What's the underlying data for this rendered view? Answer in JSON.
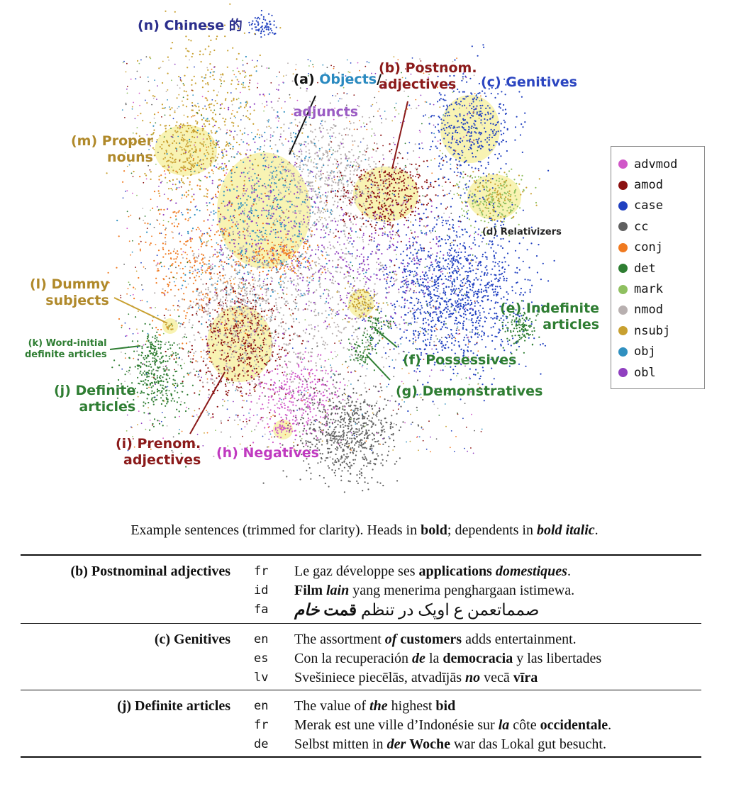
{
  "figure": {
    "cluster_labels": [
      {
        "id": "n",
        "text": "(n) Chinese 的",
        "color": "#2b2e8c"
      },
      {
        "id": "a1",
        "text": "(a) ",
        "color": "#111111"
      },
      {
        "id": "a2",
        "text": "Objects",
        "color": "#2a8ac0"
      },
      {
        "id": "a3",
        "text": "/",
        "color": "#111111"
      },
      {
        "id": "a4",
        "text": "adjuncts",
        "color": "#9b5cc4"
      },
      {
        "id": "b",
        "text": "(b) Postnom.\nadjectives",
        "color": "#8b1a1a"
      },
      {
        "id": "c",
        "text": "(c) Genitives",
        "color": "#2b45c0"
      },
      {
        "id": "m",
        "text": "(m) Proper\nnouns",
        "color": "#b0892a"
      },
      {
        "id": "d",
        "text": "(d) Relativizers",
        "color": "#222222"
      },
      {
        "id": "l",
        "text": "(l) Dummy\nsubjects",
        "color": "#b0892a"
      },
      {
        "id": "e",
        "text": "(e) Indefinite\narticles",
        "color": "#2e7d32"
      },
      {
        "id": "k",
        "text": "(k) Word-initial\ndefinite articles",
        "color": "#2e7d32"
      },
      {
        "id": "f",
        "text": "(f) Possessives",
        "color": "#2e7d32"
      },
      {
        "id": "j",
        "text": "(j) Definite\narticles",
        "color": "#2e7d32"
      },
      {
        "id": "g",
        "text": "(g) Demonstratives",
        "color": "#2e7d32"
      },
      {
        "id": "i",
        "text": "(i) Prenom.\nadjectives",
        "color": "#8b1a1a"
      },
      {
        "id": "h",
        "text": "(h) Negatives",
        "color": "#c03ac0"
      }
    ],
    "legend": [
      {
        "label": "advmod",
        "color": "#d056c8"
      },
      {
        "label": "amod",
        "color": "#8b1010"
      },
      {
        "label": "case",
        "color": "#2040c0"
      },
      {
        "label": "cc",
        "color": "#606060"
      },
      {
        "label": "conj",
        "color": "#f07a20"
      },
      {
        "label": "det",
        "color": "#2e7d32"
      },
      {
        "label": "mark",
        "color": "#8fc060"
      },
      {
        "label": "nmod",
        "color": "#b8b0b0"
      },
      {
        "label": "nsubj",
        "color": "#c8a030"
      },
      {
        "label": "obj",
        "color": "#3090c0"
      },
      {
        "label": "obl",
        "color": "#9040c0"
      }
    ]
  },
  "caption": {
    "part1": "Example sentences (trimmed for clarity). Heads in ",
    "bold": "bold",
    "part2": "; dependents in ",
    "bolditalic": "bold italic",
    "part3": "."
  },
  "examples": [
    {
      "category": "(b) Postnominal adjectives",
      "rows": [
        {
          "lang": "fr",
          "segments": [
            {
              "t": "Le gaz développe ses ",
              "s": ""
            },
            {
              "t": "applications",
              "s": "b"
            },
            {
              "t": " ",
              "s": ""
            },
            {
              "t": "domestiques",
              "s": "bi"
            },
            {
              "t": ".",
              "s": ""
            }
          ]
        },
        {
          "lang": "id",
          "segments": [
            {
              "t": "Film",
              "s": "b"
            },
            {
              "t": " ",
              "s": ""
            },
            {
              "t": "lain",
              "s": "bi"
            },
            {
              "t": " yang menerima penghargaan istimewa.",
              "s": ""
            }
          ]
        },
        {
          "lang": "fa",
          "rtl": true,
          "segments": [
            {
              "t": "صمماتعمن ع اوپک در تنظم ",
              "s": ""
            },
            {
              "t": "قمت",
              "s": "b"
            },
            {
              "t": " ",
              "s": ""
            },
            {
              "t": "خام",
              "s": "bi"
            }
          ]
        }
      ]
    },
    {
      "category": "(c) Genitives",
      "rows": [
        {
          "lang": "en",
          "segments": [
            {
              "t": "The assortment ",
              "s": ""
            },
            {
              "t": "of",
              "s": "bi"
            },
            {
              "t": " ",
              "s": ""
            },
            {
              "t": "customers",
              "s": "b"
            },
            {
              "t": " adds entertainment.",
              "s": ""
            }
          ]
        },
        {
          "lang": "es",
          "segments": [
            {
              "t": "Con la recuperación ",
              "s": ""
            },
            {
              "t": "de",
              "s": "bi"
            },
            {
              "t": " la ",
              "s": ""
            },
            {
              "t": "democracia",
              "s": "b"
            },
            {
              "t": " y las libertades",
              "s": ""
            }
          ]
        },
        {
          "lang": "lv",
          "segments": [
            {
              "t": "Svešiniece piecēlās, atvadījās ",
              "s": ""
            },
            {
              "t": "no",
              "s": "bi"
            },
            {
              "t": " vecā ",
              "s": ""
            },
            {
              "t": "vīra",
              "s": "b"
            }
          ]
        }
      ]
    },
    {
      "category": "(j) Definite articles",
      "rows": [
        {
          "lang": "en",
          "segments": [
            {
              "t": "The value of ",
              "s": ""
            },
            {
              "t": "the",
              "s": "bi"
            },
            {
              "t": " highest ",
              "s": ""
            },
            {
              "t": "bid",
              "s": "b"
            }
          ]
        },
        {
          "lang": "fr",
          "segments": [
            {
              "t": "Merak est une ville d’Indonésie sur ",
              "s": ""
            },
            {
              "t": "la",
              "s": "bi"
            },
            {
              "t": " côte ",
              "s": ""
            },
            {
              "t": "occidentale",
              "s": "b"
            },
            {
              "t": ".",
              "s": ""
            }
          ]
        },
        {
          "lang": "de",
          "segments": [
            {
              "t": "Selbst mitten in ",
              "s": ""
            },
            {
              "t": "der",
              "s": "bi"
            },
            {
              "t": " ",
              "s": ""
            },
            {
              "t": "Woche",
              "s": "b"
            },
            {
              "t": " war das Lokal gut besucht.",
              "s": ""
            }
          ]
        }
      ]
    }
  ]
}
